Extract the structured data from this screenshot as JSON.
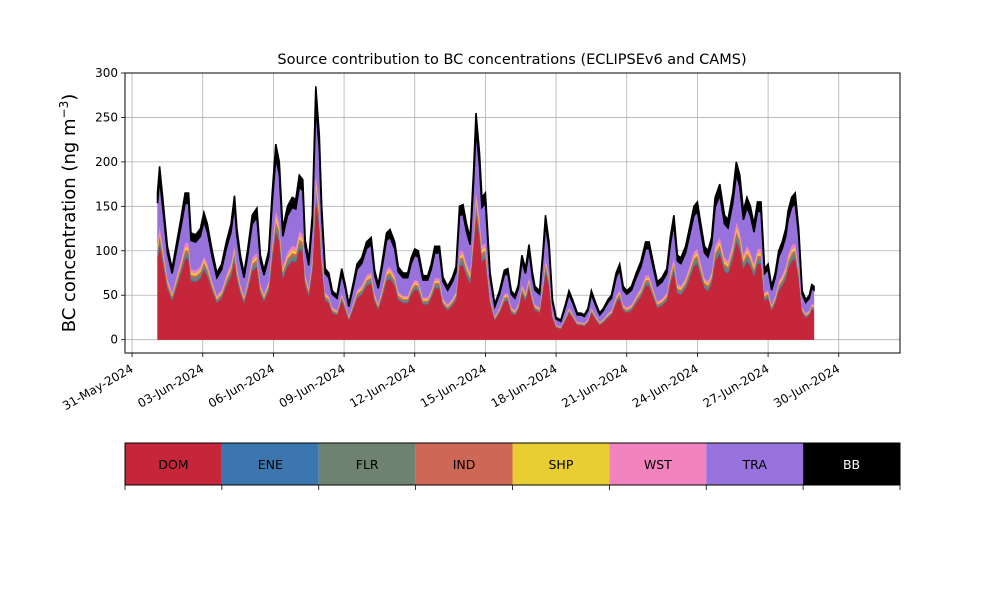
{
  "chart_data": {
    "type": "area",
    "stacked": true,
    "title": "Source contribution to BC concentrations (ECLIPSEv6 and CAMS)",
    "ylabel_main": "BC concentration (ng m",
    "ylabel_sup": "−3",
    "ylabel_close": ")",
    "xlabel": "",
    "ylim": [
      -15,
      300
    ],
    "yticks": [
      0,
      50,
      100,
      150,
      200,
      250,
      300
    ],
    "xticks": [
      {
        "day": 0,
        "label": "31-May-2024"
      },
      {
        "day": 3,
        "label": "03-Jun-2024"
      },
      {
        "day": 6,
        "label": "06-Jun-2024"
      },
      {
        "day": 9,
        "label": "09-Jun-2024"
      },
      {
        "day": 12,
        "label": "12-Jun-2024"
      },
      {
        "day": 15,
        "label": "15-Jun-2024"
      },
      {
        "day": 18,
        "label": "18-Jun-2024"
      },
      {
        "day": 21,
        "label": "21-Jun-2024"
      },
      {
        "day": 24,
        "label": "24-Jun-2024"
      },
      {
        "day": 27,
        "label": "27-Jun-2024"
      },
      {
        "day": 30,
        "label": "30-Jun-2024"
      }
    ],
    "xlim_days": [
      -0.3,
      32.6
    ],
    "grid": true,
    "total_keypoints": [
      [
        1.08,
        165
      ],
      [
        1.17,
        195
      ],
      [
        1.3,
        160
      ],
      [
        1.5,
        105
      ],
      [
        1.7,
        80
      ],
      [
        1.9,
        110
      ],
      [
        2.1,
        140
      ],
      [
        2.25,
        165
      ],
      [
        2.4,
        165
      ],
      [
        2.5,
        120
      ],
      [
        2.7,
        118
      ],
      [
        2.9,
        125
      ],
      [
        3.05,
        143
      ],
      [
        3.2,
        130
      ],
      [
        3.4,
        100
      ],
      [
        3.6,
        75
      ],
      [
        3.8,
        85
      ],
      [
        4.0,
        110
      ],
      [
        4.2,
        130
      ],
      [
        4.35,
        162
      ],
      [
        4.45,
        125
      ],
      [
        4.6,
        95
      ],
      [
        4.75,
        75
      ],
      [
        4.9,
        100
      ],
      [
        5.1,
        140
      ],
      [
        5.3,
        148
      ],
      [
        5.45,
        95
      ],
      [
        5.6,
        78
      ],
      [
        5.8,
        100
      ],
      [
        5.95,
        165
      ],
      [
        6.1,
        220
      ],
      [
        6.25,
        200
      ],
      [
        6.4,
        125
      ],
      [
        6.6,
        150
      ],
      [
        6.8,
        160
      ],
      [
        6.95,
        158
      ],
      [
        7.1,
        185
      ],
      [
        7.25,
        180
      ],
      [
        7.35,
        112
      ],
      [
        7.5,
        90
      ],
      [
        7.65,
        140
      ],
      [
        7.8,
        285
      ],
      [
        7.95,
        230
      ],
      [
        8.05,
        150
      ],
      [
        8.2,
        80
      ],
      [
        8.35,
        75
      ],
      [
        8.5,
        55
      ],
      [
        8.7,
        50
      ],
      [
        8.9,
        80
      ],
      [
        9.05,
        62
      ],
      [
        9.2,
        40
      ],
      [
        9.4,
        65
      ],
      [
        9.55,
        85
      ],
      [
        9.75,
        92
      ],
      [
        9.95,
        110
      ],
      [
        10.15,
        115
      ],
      [
        10.3,
        78
      ],
      [
        10.45,
        62
      ],
      [
        10.6,
        85
      ],
      [
        10.8,
        120
      ],
      [
        10.95,
        124
      ],
      [
        11.15,
        110
      ],
      [
        11.3,
        82
      ],
      [
        11.5,
        75
      ],
      [
        11.7,
        75
      ],
      [
        11.85,
        92
      ],
      [
        12.0,
        102
      ],
      [
        12.15,
        100
      ],
      [
        12.35,
        72
      ],
      [
        12.55,
        72
      ],
      [
        12.7,
        85
      ],
      [
        12.85,
        105
      ],
      [
        13.05,
        105
      ],
      [
        13.2,
        70
      ],
      [
        13.4,
        60
      ],
      [
        13.6,
        70
      ],
      [
        13.75,
        82
      ],
      [
        13.9,
        150
      ],
      [
        14.05,
        152
      ],
      [
        14.2,
        130
      ],
      [
        14.35,
        115
      ],
      [
        14.5,
        190
      ],
      [
        14.6,
        255
      ],
      [
        14.75,
        210
      ],
      [
        14.85,
        160
      ],
      [
        15.0,
        165
      ],
      [
        15.2,
        75
      ],
      [
        15.4,
        40
      ],
      [
        15.6,
        55
      ],
      [
        15.8,
        78
      ],
      [
        15.95,
        80
      ],
      [
        16.1,
        55
      ],
      [
        16.25,
        50
      ],
      [
        16.4,
        62
      ],
      [
        16.55,
        95
      ],
      [
        16.7,
        80
      ],
      [
        16.85,
        107
      ],
      [
        17.0,
        75
      ],
      [
        17.1,
        60
      ],
      [
        17.3,
        55
      ],
      [
        17.45,
        102
      ],
      [
        17.55,
        140
      ],
      [
        17.7,
        110
      ],
      [
        17.85,
        45
      ],
      [
        18.0,
        25
      ],
      [
        18.2,
        22
      ],
      [
        18.4,
        40
      ],
      [
        18.55,
        55
      ],
      [
        18.7,
        45
      ],
      [
        18.9,
        30
      ],
      [
        19.05,
        30
      ],
      [
        19.2,
        28
      ],
      [
        19.35,
        35
      ],
      [
        19.5,
        55
      ],
      [
        19.7,
        40
      ],
      [
        19.85,
        30
      ],
      [
        20.0,
        35
      ],
      [
        20.2,
        45
      ],
      [
        20.35,
        50
      ],
      [
        20.55,
        75
      ],
      [
        20.7,
        85
      ],
      [
        20.85,
        60
      ],
      [
        21.0,
        55
      ],
      [
        21.2,
        60
      ],
      [
        21.4,
        75
      ],
      [
        21.6,
        88
      ],
      [
        21.8,
        110
      ],
      [
        21.95,
        110
      ],
      [
        22.1,
        90
      ],
      [
        22.3,
        65
      ],
      [
        22.5,
        70
      ],
      [
        22.7,
        80
      ],
      [
        22.85,
        115
      ],
      [
        23.0,
        140
      ],
      [
        23.15,
        95
      ],
      [
        23.3,
        92
      ],
      [
        23.5,
        105
      ],
      [
        23.7,
        130
      ],
      [
        23.85,
        150
      ],
      [
        24.0,
        155
      ],
      [
        24.15,
        130
      ],
      [
        24.3,
        105
      ],
      [
        24.45,
        100
      ],
      [
        24.6,
        115
      ],
      [
        24.75,
        160
      ],
      [
        24.95,
        175
      ],
      [
        25.15,
        140
      ],
      [
        25.3,
        135
      ],
      [
        25.5,
        165
      ],
      [
        25.65,
        200
      ],
      [
        25.8,
        185
      ],
      [
        25.95,
        145
      ],
      [
        26.1,
        160
      ],
      [
        26.25,
        150
      ],
      [
        26.4,
        130
      ],
      [
        26.55,
        155
      ],
      [
        26.7,
        155
      ],
      [
        26.85,
        80
      ],
      [
        27.0,
        85
      ],
      [
        27.15,
        60
      ],
      [
        27.3,
        75
      ],
      [
        27.45,
        100
      ],
      [
        27.6,
        110
      ],
      [
        27.75,
        125
      ],
      [
        27.85,
        145
      ],
      [
        28.0,
        160
      ],
      [
        28.15,
        165
      ],
      [
        28.3,
        125
      ],
      [
        28.45,
        55
      ],
      [
        28.6,
        45
      ],
      [
        28.75,
        50
      ],
      [
        28.85,
        62
      ],
      [
        28.95,
        60
      ]
    ],
    "series": [
      {
        "name": "DOM",
        "color": "#c5263a",
        "fraction": 0.55
      },
      {
        "name": "ENE",
        "color": "#3b76af",
        "fraction": 0.01
      },
      {
        "name": "FLR",
        "color": "#6f8272",
        "fraction": 0.03
      },
      {
        "name": "IND",
        "color": "#cd6756",
        "fraction": 0.02
      },
      {
        "name": "SHP",
        "color": "#e8ce33",
        "fraction": 0.02
      },
      {
        "name": "WST",
        "color": "#f383be",
        "fraction": 0.03
      },
      {
        "name": "TRA",
        "color": "#9772dd",
        "fraction": 0.27
      },
      {
        "name": "BB",
        "color": "#000000",
        "fraction": 0.07
      }
    ]
  }
}
